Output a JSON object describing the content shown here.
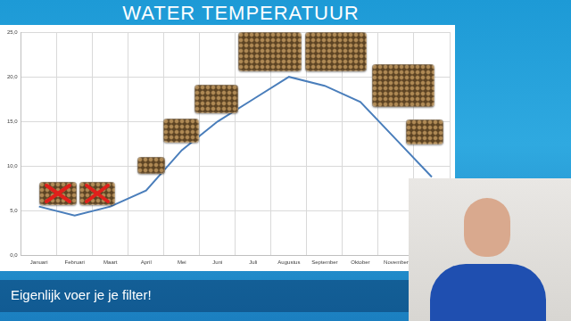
{
  "title": "WATER TEMPERATUUR",
  "caption": "Eigenlijk voer je je filter!",
  "chart_data": {
    "type": "line",
    "categories": [
      "Januari",
      "Februari",
      "Maart",
      "April",
      "Mei",
      "Juni",
      "Juli",
      "Augustus",
      "September",
      "Oktober",
      "November",
      null
    ],
    "values": [
      5.5,
      4.5,
      5.5,
      7.3,
      11.8,
      15.0,
      17.5,
      20.0,
      19.0,
      17.2,
      13.0,
      8.8
    ],
    "color": "#4a7ebb",
    "ylim": [
      0,
      25
    ],
    "yticks": [
      {
        "value": 0,
        "label": "0,0"
      },
      {
        "value": 5,
        "label": "5,0"
      },
      {
        "value": 10,
        "label": "10,0"
      },
      {
        "value": 15,
        "label": "15,0"
      },
      {
        "value": 20,
        "label": "20,0"
      },
      {
        "value": 25,
        "label": "25,0"
      }
    ],
    "grid": true
  }
}
